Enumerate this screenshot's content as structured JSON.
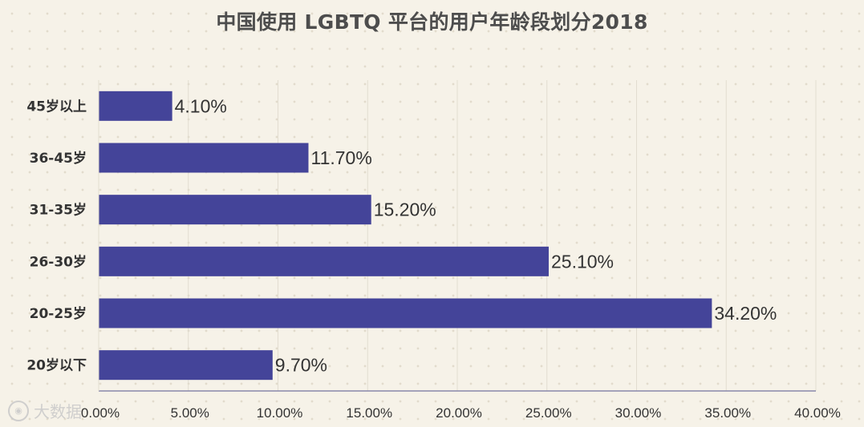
{
  "title": "中国使用 LGBTQ 平台的用户年龄段划分2018",
  "watermark": {
    "icon": "logo-icon",
    "text": "大数据"
  },
  "colors": {
    "background": "#f6f2e8",
    "bar": "#444499",
    "text": "#333333",
    "title": "#4d4d4d",
    "gridline": "#e2ddd0",
    "axis": "#8888aa"
  },
  "chart_data": {
    "type": "bar",
    "orientation": "horizontal",
    "title": "中国使用 LGBTQ 平台的用户年龄段划分2018",
    "categories": [
      "45岁以上",
      "36-45岁",
      "31-35岁",
      "26-30岁",
      "20-25岁",
      "20岁以下"
    ],
    "values": [
      4.1,
      11.7,
      15.2,
      25.1,
      34.2,
      9.7
    ],
    "value_labels": [
      "4.10%",
      "11.70%",
      "15.20%",
      "25.10%",
      "34.20%",
      "9.70%"
    ],
    "xlim": [
      0,
      40
    ],
    "xticks": [
      0,
      5,
      10,
      15,
      20,
      25,
      30,
      35,
      40
    ],
    "xtick_labels": [
      "0.00%",
      "5.00%",
      "10.00%",
      "15.00%",
      "20.00%",
      "25.00%",
      "30.00%",
      "35.00%",
      "40.00%"
    ],
    "xlabel": "",
    "ylabel": "",
    "grid": "vertical",
    "legend": "none"
  }
}
